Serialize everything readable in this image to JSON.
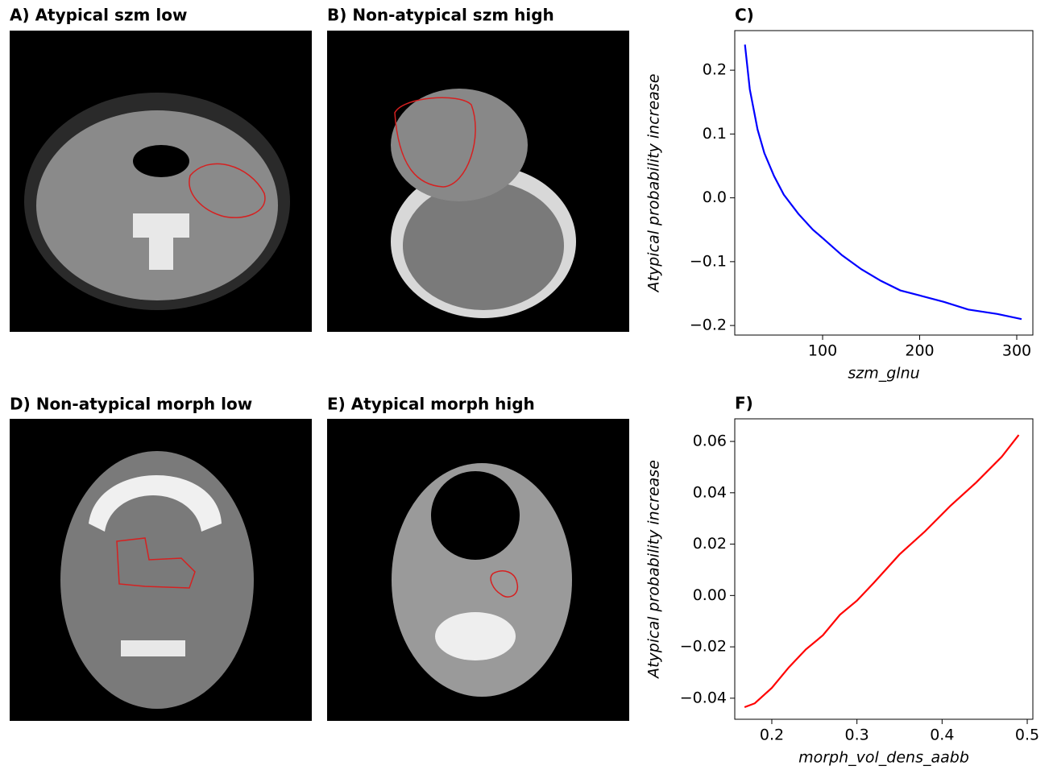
{
  "images": [
    {
      "title": "A) Atypical szm low"
    },
    {
      "title": "B) Non-atypical szm high"
    },
    {
      "title": "D) Non-atypical morph low"
    },
    {
      "title": "E) Atypical morph high"
    }
  ],
  "chart_data": [
    {
      "type": "line",
      "title": "C)",
      "x_label": "szm_glnu",
      "y_label": "Atypical probability increase",
      "xlim": [
        9.5,
        316.6
      ],
      "xticks": [
        100,
        200,
        300
      ],
      "ylim": [
        -0.215,
        0.262
      ],
      "yticks": [
        {
          "value": -0.2,
          "label": "−0.2"
        },
        {
          "value": -0.1,
          "label": "−0.1"
        },
        {
          "value": 0,
          "label": "0.0"
        },
        0.1,
        0.2
      ],
      "series": [
        {
          "color": "#0000ff",
          "x": [
            20,
            25,
            33,
            40,
            50,
            60,
            75,
            90,
            100,
            120,
            140,
            160,
            180,
            200,
            225,
            250,
            280,
            305
          ],
          "values": [
            0.24,
            0.17,
            0.107,
            0.07,
            0.034,
            0.005,
            -0.025,
            -0.05,
            -0.063,
            -0.09,
            -0.112,
            -0.13,
            -0.145,
            -0.153,
            -0.163,
            -0.175,
            -0.182,
            -0.19
          ]
        }
      ]
    },
    {
      "type": "line",
      "title": "F)",
      "x_label": "morph_vol_dens_aabb",
      "y_label": "Atypical probability increase",
      "xlim": [
        0.1565,
        0.5066
      ],
      "xticks": [
        0.2,
        0.3,
        0.4,
        0.5
      ],
      "ylim": [
        -0.0482,
        0.0688
      ],
      "yticks": [
        {
          "value": -0.04,
          "label": "−0.04"
        },
        {
          "value": -0.02,
          "label": "−0.02"
        },
        {
          "value": 0,
          "label": "0.00"
        },
        0.02,
        0.04,
        0.06
      ],
      "series": [
        {
          "color": "#ff0000",
          "x": [
            0.168,
            0.18,
            0.2,
            0.22,
            0.24,
            0.26,
            0.28,
            0.3,
            0.32,
            0.35,
            0.38,
            0.41,
            0.44,
            0.47,
            0.49
          ],
          "values": [
            -0.0435,
            -0.042,
            -0.036,
            -0.028,
            -0.021,
            -0.0155,
            -0.0075,
            -0.002,
            0.005,
            0.016,
            0.025,
            0.035,
            0.044,
            0.054,
            0.0625
          ]
        }
      ]
    }
  ]
}
